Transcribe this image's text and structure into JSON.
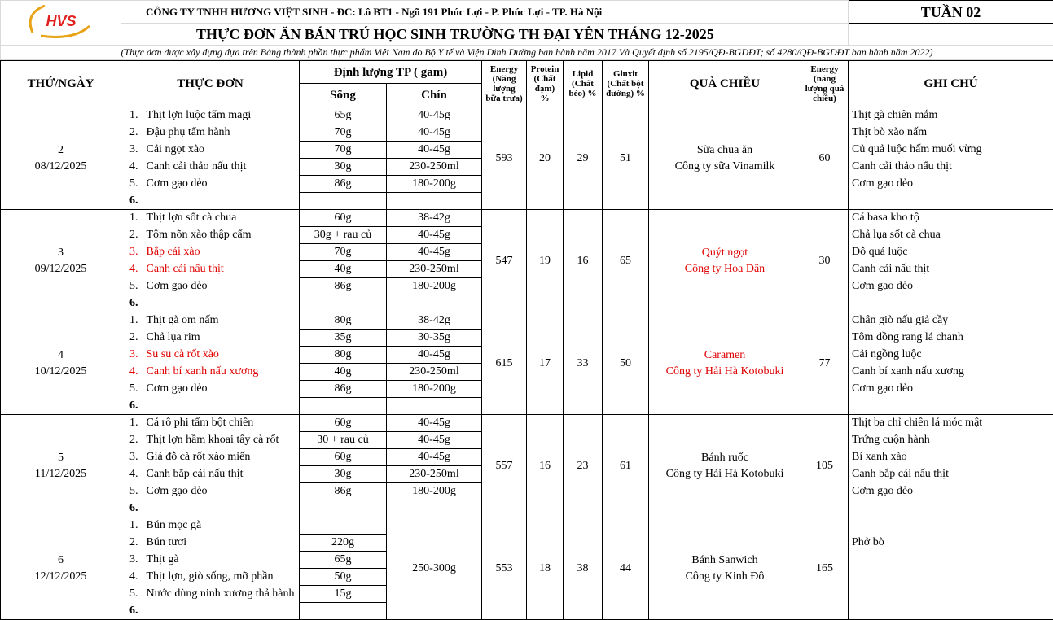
{
  "header": {
    "company": "CÔNG TY TNHH HƯƠNG VIỆT SINH - ĐC: Lô BT1 - Ngõ 191 Phúc Lợi - P. Phúc Lợi - TP. Hà Nội",
    "week": "TUẦN 02",
    "title": "THỰC ĐƠN ĂN BÁN TRÚ HỌC SINH TRƯỜNG TH ĐẠI YÊN THÁNG 12-2025",
    "note": "(Thực đơn được xây dựng dựa trên Bảng thành phần thực phẩm Việt Nam do Bộ Y tế và Viện Dinh Dưỡng ban hành năm 2017 Và Quyết định số 2195/QĐ-BGDĐT; số 4280/QĐ-BGDĐT ban hành năm 2022)",
    "logo_text": "HVS"
  },
  "columns": {
    "day": "THỨ/NGÀY",
    "menu": "THỰC ĐƠN",
    "quantity": "Định lượng TP ( gam)",
    "raw": "Sống",
    "cooked": "Chín",
    "energy": "Energy (Năng lượng bữa trưa)",
    "protein": "Protein (Chất đạm) %",
    "lipid": "Lipid (Chất béo) %",
    "gluxit": "Gluxit (Chất bột đường) %",
    "snack": "QUÀ CHIỀU",
    "snack_energy": "Energy (năng lượng quà chiều)",
    "notes": "GHI CHÚ"
  },
  "colors": {
    "highlight": "#e00000"
  },
  "days": [
    {
      "day": "2",
      "date": "08/12/2025",
      "energy": "593",
      "protein": "20",
      "lipid": "29",
      "gluxit": "51",
      "snack": [
        "Sữa chua ăn",
        "Công ty sữa Vinamilk"
      ],
      "snack_red": false,
      "snack_energy": "60",
      "items": [
        {
          "n": "1.",
          "dish": "Thịt lợn luộc tẩm magi",
          "raw": "65g",
          "cooked": "40-45g"
        },
        {
          "n": "2.",
          "dish": "Đậu phụ tẩm hành",
          "raw": "70g",
          "cooked": "40-45g"
        },
        {
          "n": "3.",
          "dish": "Cải ngọt xào",
          "raw": "70g",
          "cooked": "40-45g"
        },
        {
          "n": "4.",
          "dish": "Canh cải thảo nấu thịt",
          "raw": "30g",
          "cooked": "230-250ml"
        },
        {
          "n": "5.",
          "dish": "Cơm gạo dẻo",
          "raw": "86g",
          "cooked": "180-200g"
        },
        {
          "n": "6.",
          "dish": "",
          "raw": "",
          "cooked": ""
        }
      ],
      "notes": [
        "Thịt gà chiên mắm",
        "Thịt bò xào nấm",
        "Củ quả luộc hấm muối vừng",
        "Canh cải thảo nấu thịt",
        "Cơm gạo dẻo",
        ""
      ]
    },
    {
      "day": "3",
      "date": "09/12/2025",
      "energy": "547",
      "protein": "19",
      "lipid": "16",
      "gluxit": "65",
      "snack": [
        "Quýt ngọt",
        "Công ty Hoa Dân"
      ],
      "snack_red": true,
      "snack_energy": "30",
      "items": [
        {
          "n": "1.",
          "dish": "Thịt lợn sốt cà chua",
          "raw": "60g",
          "cooked": "38-42g"
        },
        {
          "n": "2.",
          "dish": "Tôm nõn xào thập cẩm",
          "raw": "30g + rau củ",
          "cooked": "40-45g"
        },
        {
          "n": "3.",
          "dish": "Bắp cải xào",
          "raw": "70g",
          "cooked": "40-45g",
          "red": true
        },
        {
          "n": "4.",
          "dish": "Canh cải nấu thịt",
          "raw": "40g",
          "cooked": "230-250ml",
          "red": true
        },
        {
          "n": "5.",
          "dish": "Cơm gạo dẻo",
          "raw": "86g",
          "cooked": "180-200g"
        },
        {
          "n": "6.",
          "dish": "",
          "raw": "",
          "cooked": ""
        }
      ],
      "notes": [
        "Cá basa kho tộ",
        "Chả lụa sốt cà chua",
        "Đỗ quả luộc",
        "Canh cải nấu thịt",
        "Cơm gạo dẻo",
        ""
      ]
    },
    {
      "day": "4",
      "date": "10/12/2025",
      "energy": "615",
      "protein": "17",
      "lipid": "33",
      "gluxit": "50",
      "snack": [
        "Caramen",
        "Công ty Hải Hà Kotobuki"
      ],
      "snack_red": true,
      "snack_energy": "77",
      "items": [
        {
          "n": "1.",
          "dish": "Thịt gà om nấm",
          "raw": "80g",
          "cooked": "38-42g"
        },
        {
          "n": "2.",
          "dish": "Chả lụa rim",
          "raw": "35g",
          "cooked": "30-35g"
        },
        {
          "n": "3.",
          "dish": "Su su cà rốt xào",
          "raw": "80g",
          "cooked": "40-45g",
          "red": true
        },
        {
          "n": "4.",
          "dish": "Canh bí xanh nấu xương",
          "raw": "40g",
          "cooked": "230-250ml",
          "red": true
        },
        {
          "n": "5.",
          "dish": "Cơm gạo dẻo",
          "raw": "86g",
          "cooked": "180-200g"
        },
        {
          "n": "6.",
          "dish": "",
          "raw": "",
          "cooked": ""
        }
      ],
      "notes": [
        "Chân giò nấu giả cầy",
        "Tôm đồng rang lá chanh",
        "Cải ngồng luộc",
        "Canh bí xanh nấu xương",
        "Cơm gạo dẻo",
        ""
      ]
    },
    {
      "day": "5",
      "date": "11/12/2025",
      "energy": "557",
      "protein": "16",
      "lipid": "23",
      "gluxit": "61",
      "snack": [
        "Bánh ruốc",
        "Công ty Hải Hà Kotobuki"
      ],
      "snack_red": false,
      "snack_energy": "105",
      "items": [
        {
          "n": "1.",
          "dish": "Cá rô phi tẩm bột chiên",
          "raw": "60g",
          "cooked": "40-45g"
        },
        {
          "n": "2.",
          "dish": "Thịt lợn hầm khoai tây cà rốt",
          "raw": "30 + rau củ",
          "cooked": "40-45g"
        },
        {
          "n": "3.",
          "dish": "Giá đỗ cà rốt xào miến",
          "raw": "60g",
          "cooked": "40-45g"
        },
        {
          "n": "4.",
          "dish": "Canh bắp cải nấu thịt",
          "raw": "30g",
          "cooked": "230-250ml"
        },
        {
          "n": "5.",
          "dish": "Cơm gạo dẻo",
          "raw": "86g",
          "cooked": "180-200g"
        },
        {
          "n": "6.",
          "dish": "",
          "raw": "",
          "cooked": ""
        }
      ],
      "notes": [
        "Thịt ba chỉ chiên lá móc mật",
        "Trứng cuộn hành",
        "Bí xanh xào",
        "Canh bắp cải nấu thịt",
        "Cơm gạo dẻo",
        ""
      ]
    },
    {
      "day": "6",
      "date": "12/12/2025",
      "energy": "553",
      "protein": "18",
      "lipid": "38",
      "gluxit": "44",
      "snack": [
        "Bánh Sanwich",
        "Công ty Kinh Đô"
      ],
      "snack_red": false,
      "snack_energy": "165",
      "cooked_merged": "250-300g",
      "items": [
        {
          "n": "1.",
          "dish": "Bún mọc gà",
          "raw": ""
        },
        {
          "n": "2.",
          "dish": "Bún tươi",
          "raw": "220g"
        },
        {
          "n": "3.",
          "dish": "Thịt gà",
          "raw": "65g"
        },
        {
          "n": "4.",
          "dish": "Thịt lợn, giò sống, mỡ phần",
          "raw": "50g"
        },
        {
          "n": "5.",
          "dish": "Nước dùng ninh xương thả hành",
          "raw": "15g"
        },
        {
          "n": "6.",
          "dish": "",
          "raw": ""
        }
      ],
      "notes": [
        "",
        "Phở bò",
        "",
        "",
        "",
        ""
      ]
    }
  ]
}
